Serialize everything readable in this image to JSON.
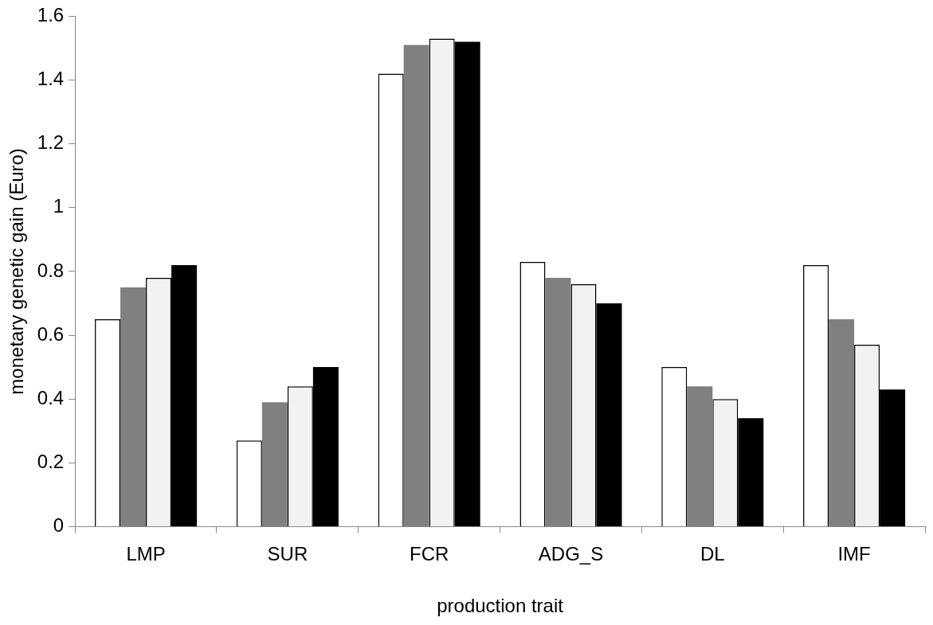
{
  "chart_data": {
    "type": "bar",
    "xlabel": "production trait",
    "ylabel": "monetary genetic gain (Euro)",
    "categories": [
      "LMP",
      "SUR",
      "FCR",
      "ADG_S",
      "DL",
      "IMF"
    ],
    "series": [
      {
        "color": "#ffffff",
        "values": [
          0.65,
          0.27,
          1.42,
          0.83,
          0.5,
          0.82
        ]
      },
      {
        "color": "#808080",
        "values": [
          0.75,
          0.39,
          1.51,
          0.78,
          0.44,
          0.65
        ]
      },
      {
        "color": "#f2f2f2",
        "values": [
          0.78,
          0.44,
          1.53,
          0.76,
          0.4,
          0.57
        ]
      },
      {
        "color": "#000000",
        "values": [
          0.82,
          0.5,
          1.52,
          0.7,
          0.34,
          0.43
        ]
      }
    ],
    "ylim": [
      0,
      1.6
    ],
    "yticks": [
      0,
      0.2,
      0.4,
      0.6,
      0.8,
      1,
      1.2,
      1.4,
      1.6
    ],
    "grid": false,
    "legend": false
  }
}
